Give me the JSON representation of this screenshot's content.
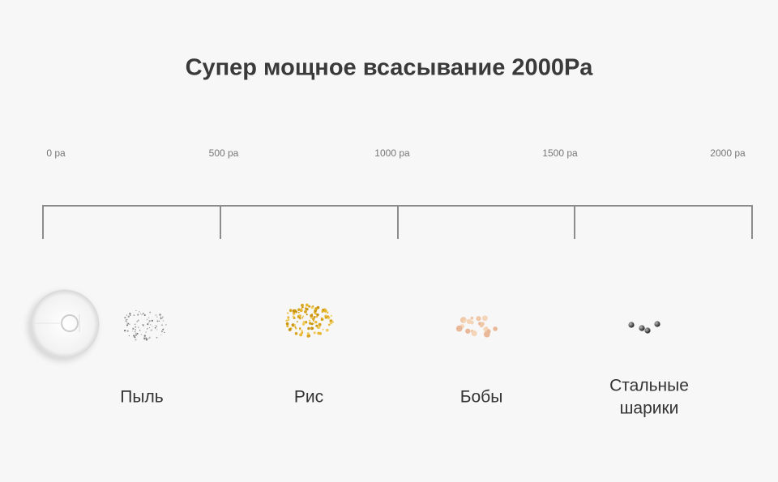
{
  "title": "Супер мощное всасывание 2000Pa",
  "scale": {
    "ticks": [
      "0 pa",
      "500 pa",
      "1000 pa",
      "1500 pa",
      "2000 pa"
    ]
  },
  "items": [
    {
      "lines": [
        "Пыль"
      ]
    },
    {
      "lines": [
        "Рис"
      ]
    },
    {
      "lines": [
        "Бобы"
      ]
    },
    {
      "lines": [
        "Стальные",
        "шарики"
      ]
    }
  ]
}
